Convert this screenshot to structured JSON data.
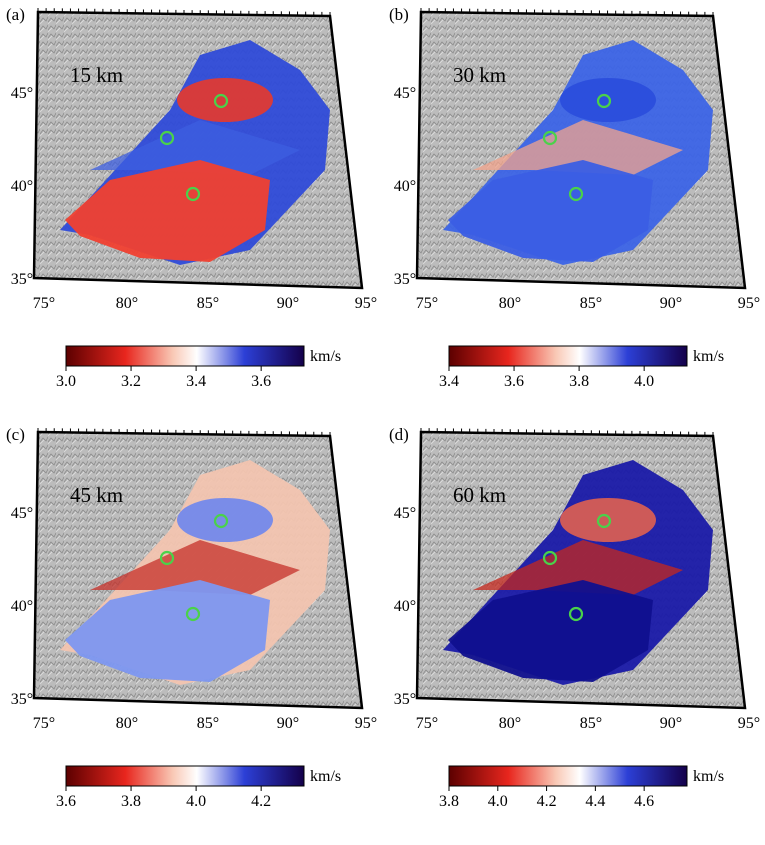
{
  "colors": {
    "velocity_low": "#5c0000",
    "velocity_mid": "#ffffff",
    "velocity_high": "#14004a",
    "station_marker": "#4ad24a",
    "relief_base": "#bcbcbc"
  },
  "map_axes": {
    "lat_labels": [
      "45°",
      "40°",
      "35°"
    ],
    "lon_labels": [
      "75°",
      "80°",
      "85°",
      "90°",
      "95°"
    ]
  },
  "panels": [
    {
      "letter": "(a)",
      "depth": "15 km",
      "unit": "km/s",
      "ticks": [
        "3.0",
        "3.2",
        "3.4",
        "3.6"
      ],
      "velocity_tendency": "slow basin, fast rim"
    },
    {
      "letter": "(b)",
      "depth": "30 km",
      "unit": "km/s",
      "ticks": [
        "3.4",
        "3.6",
        "3.8",
        "4.0"
      ],
      "velocity_tendency": "fast basins"
    },
    {
      "letter": "(c)",
      "depth": "45 km",
      "unit": "km/s",
      "ticks": [
        "3.6",
        "3.8",
        "4.0",
        "4.2"
      ],
      "velocity_tendency": "mixed"
    },
    {
      "letter": "(d)",
      "depth": "60 km",
      "unit": "km/s",
      "ticks": [
        "3.8",
        "4.0",
        "4.2",
        "4.4",
        "4.6"
      ],
      "velocity_tendency": "slow north, fast south"
    }
  ]
}
